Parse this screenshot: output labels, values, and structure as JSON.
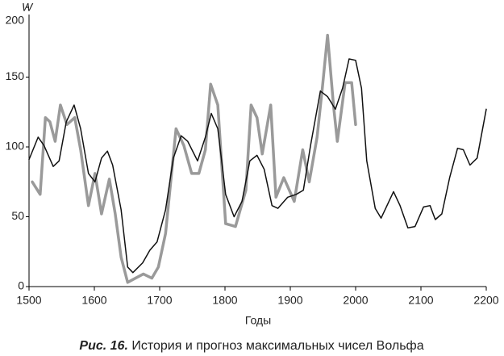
{
  "chart_data": {
    "type": "line",
    "caption_label": "Рис. 16.",
    "caption": "История и прогноз максимальных чисел Вольфа",
    "x_label": "Годы",
    "y_label": "W",
    "xlim": [
      1500,
      2200
    ],
    "xticks": [
      1500,
      1600,
      1700,
      1800,
      1900,
      2000,
      2100,
      2200
    ],
    "ylim": [
      0,
      200
    ],
    "yticks": [
      0,
      50,
      100,
      150,
      200
    ],
    "series": [
      {
        "color": "#111111",
        "x": [
          1500,
          1514,
          1523,
          1537,
          1546,
          1557,
          1569,
          1579,
          1591,
          1601,
          1611,
          1620,
          1628,
          1641,
          1651,
          1659,
          1674,
          1685,
          1696,
          1709,
          1721,
          1733,
          1743,
          1758,
          1770,
          1779,
          1789,
          1801,
          1814,
          1826,
          1838,
          1849,
          1860,
          1872,
          1881,
          1896,
          1909,
          1920,
          1931,
          1946,
          1957,
          1969,
          1980,
          1990,
          2000,
          2009,
          2017,
          2030,
          2039,
          2048,
          2058,
          2068,
          2080,
          2091,
          2104,
          2114,
          2122,
          2132,
          2144,
          2156,
          2165,
          2175,
          2186,
          2200
        ],
        "values": [
          91,
          107,
          101,
          86,
          90,
          118,
          130,
          113,
          81,
          75,
          92,
          97,
          87,
          55,
          14,
          10,
          17,
          26,
          32,
          55,
          92,
          108,
          104,
          90,
          107,
          124,
          113,
          66,
          50,
          61,
          90,
          94,
          84,
          58,
          56,
          64,
          66,
          69,
          101,
          140,
          136,
          127,
          142,
          163,
          162,
          142,
          90,
          56,
          49,
          58,
          68,
          58,
          42,
          43,
          57,
          58,
          48,
          52,
          78,
          99,
          98,
          87,
          92,
          127
        ]
      },
      {
        "color": "#9a9a9a",
        "x": [
          1505,
          1517,
          1525,
          1532,
          1540,
          1548,
          1558,
          1570,
          1579,
          1591,
          1601,
          1611,
          1623,
          1632,
          1641,
          1651,
          1663,
          1675,
          1688,
          1698,
          1709,
          1725,
          1737,
          1749,
          1760,
          1770,
          1778,
          1789,
          1801,
          1816,
          1832,
          1840,
          1849,
          1857,
          1870,
          1878,
          1890,
          1906,
          1919,
          1929,
          1941,
          1949,
          1957,
          1966,
          1972,
          1984,
          1994,
          2000
        ],
        "values": [
          75,
          66,
          121,
          118,
          104,
          130,
          116,
          121,
          98,
          58,
          81,
          52,
          77,
          52,
          21,
          3,
          6,
          9,
          6,
          14,
          38,
          113,
          101,
          81,
          81,
          98,
          145,
          130,
          45,
          43,
          69,
          130,
          121,
          95,
          130,
          64,
          78,
          61,
          98,
          75,
          107,
          142,
          180,
          130,
          104,
          146,
          146,
          116
        ]
      }
    ]
  }
}
